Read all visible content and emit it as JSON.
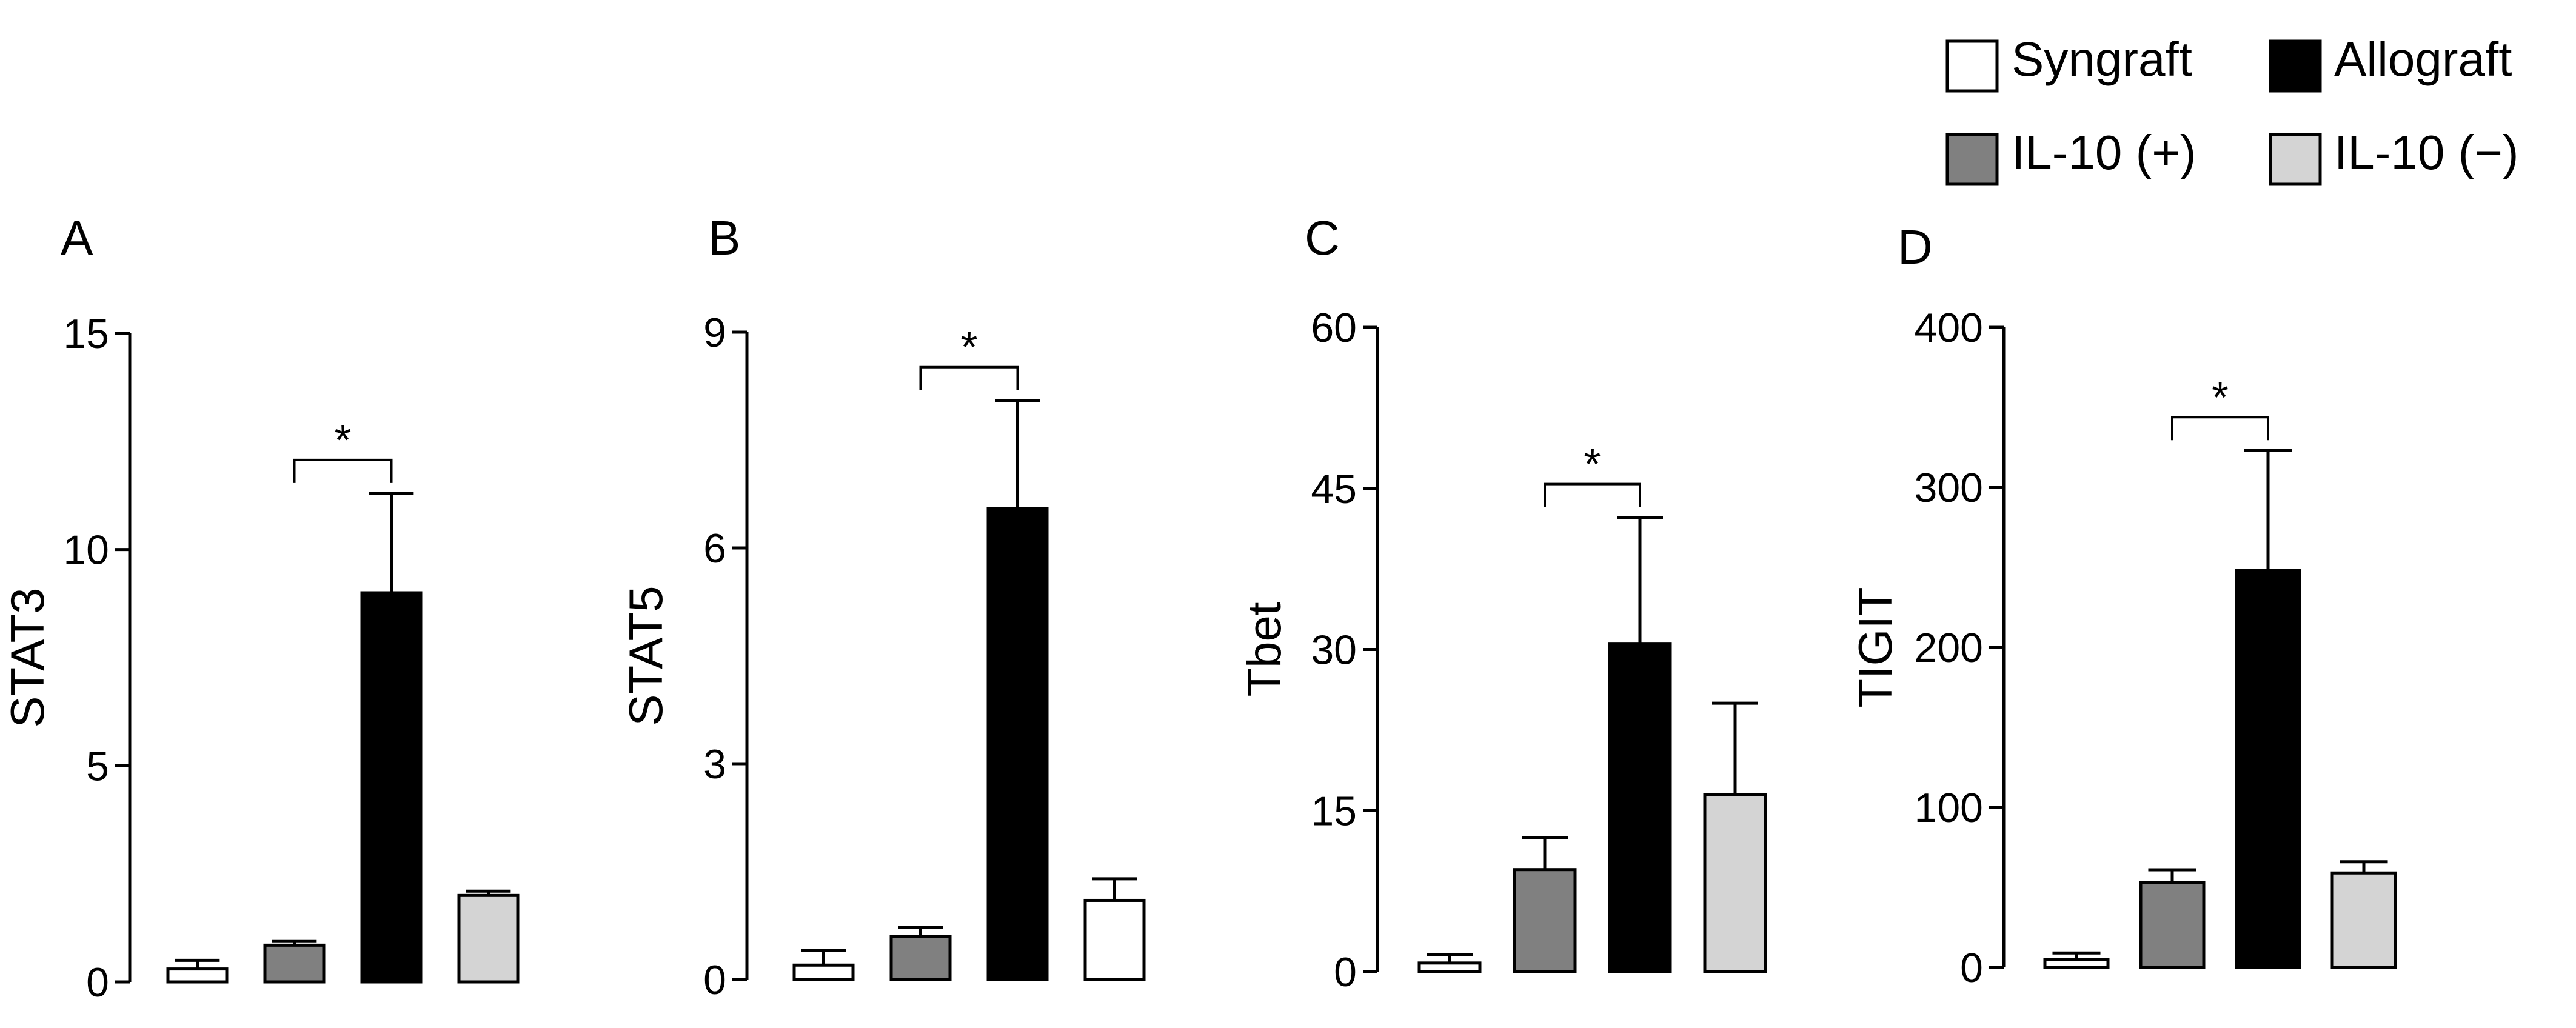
{
  "legend": {
    "placement": "top-right",
    "items": [
      {
        "label": "Syngraft",
        "color": "#ffffff"
      },
      {
        "label": "Allograft",
        "color": "#000000"
      },
      {
        "label": "IL-10 (+)",
        "color": "#808080"
      },
      {
        "label": "IL-10 (−)",
        "color": "#d4d4d4"
      }
    ]
  },
  "chart_data": [
    {
      "type": "bar",
      "panel": "A",
      "ylabel": "STAT3",
      "ylim": [
        0,
        15
      ],
      "yticks": [
        "0",
        "5",
        "10",
        "15"
      ],
      "ytick_values": [
        0,
        5,
        10,
        15
      ],
      "significance": "*",
      "bars": [
        {
          "color": "#ffffff",
          "value": 0.3,
          "error": 0.2
        },
        {
          "color": "#808080",
          "value": 0.85,
          "error": 0.1
        },
        {
          "color": "#000000",
          "value": 9.0,
          "error": 2.3
        },
        {
          "color": "#d4d4d4",
          "value": 2.0,
          "error": 0.1
        }
      ]
    },
    {
      "type": "bar",
      "panel": "B",
      "ylabel": "STAT5",
      "ylim": [
        0,
        9
      ],
      "yticks": [
        "0",
        "3",
        "6",
        "9"
      ],
      "ytick_values": [
        0,
        3,
        6,
        9
      ],
      "significance": "*",
      "bars": [
        {
          "color": "#ffffff",
          "value": 0.2,
          "error": 0.2
        },
        {
          "color": "#808080",
          "value": 0.6,
          "error": 0.12
        },
        {
          "color": "#000000",
          "value": 6.55,
          "error": 1.5
        },
        {
          "color": "#ffffff",
          "value": 1.1,
          "error": 0.3
        }
      ]
    },
    {
      "type": "bar",
      "panel": "C",
      "ylabel": "Tbet",
      "ylim": [
        0,
        60
      ],
      "yticks": [
        "0",
        "15",
        "30",
        "45",
        "60"
      ],
      "ytick_values": [
        0,
        15,
        30,
        45,
        60
      ],
      "significance": "*",
      "bars": [
        {
          "color": "#ffffff",
          "value": 0.8,
          "error": 0.8
        },
        {
          "color": "#808080",
          "value": 9.5,
          "error": 3.0
        },
        {
          "color": "#000000",
          "value": 30.5,
          "error": 11.8
        },
        {
          "color": "#d4d4d4",
          "value": 16.5,
          "error": 8.5
        }
      ]
    },
    {
      "type": "bar",
      "panel": "D",
      "ylabel": "TIGIT",
      "ylim": [
        0,
        400
      ],
      "yticks": [
        "0",
        "100",
        "200",
        "300",
        "400"
      ],
      "ytick_values": [
        0,
        100,
        200,
        300,
        400
      ],
      "significance": "*",
      "bars": [
        {
          "color": "#ffffff",
          "value": 5,
          "error": 4
        },
        {
          "color": "#808080",
          "value": 53,
          "error": 8
        },
        {
          "color": "#000000",
          "value": 248,
          "error": 75
        },
        {
          "color": "#d4d4d4",
          "value": 59,
          "error": 7
        }
      ]
    }
  ]
}
